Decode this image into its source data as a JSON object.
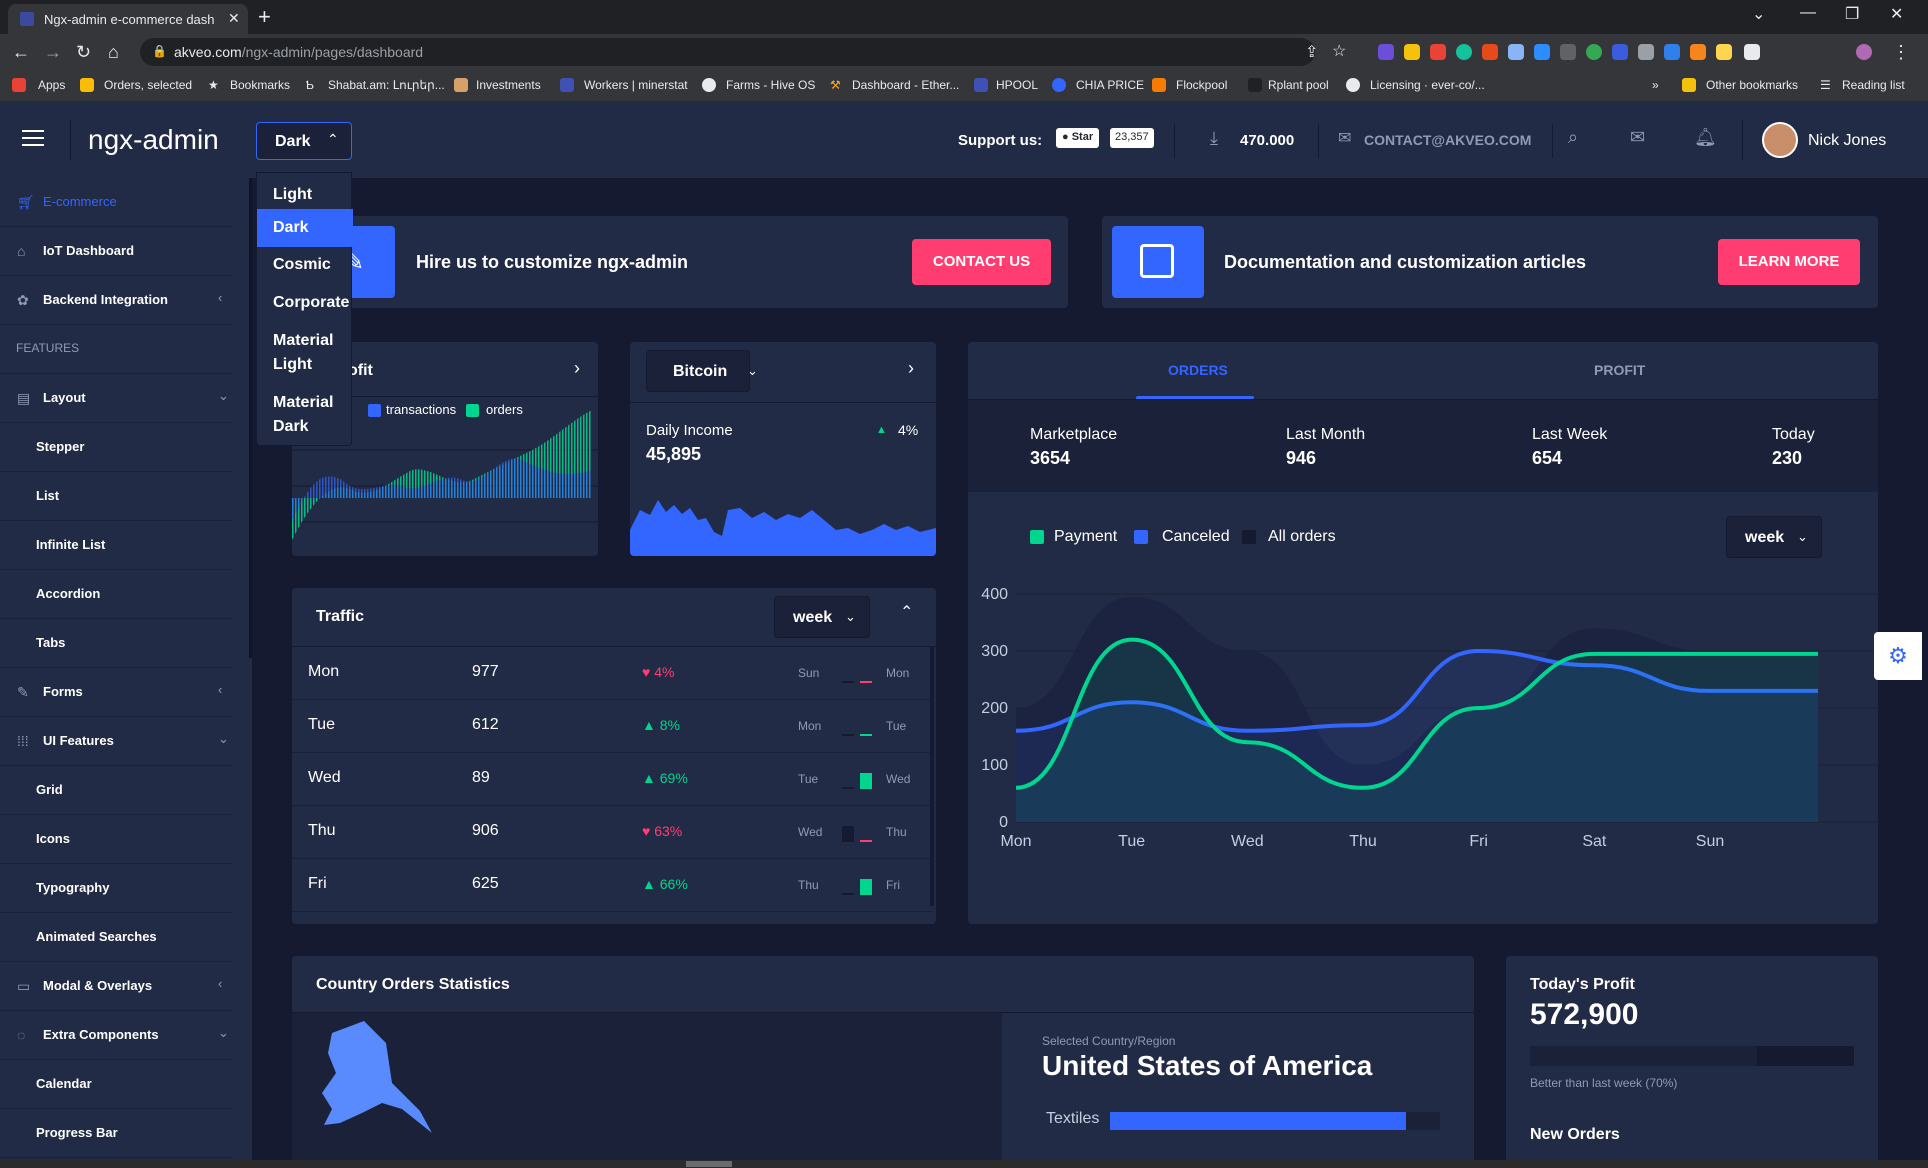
{
  "browser": {
    "tab_title": "Ngx-admin e-commerce dashbo",
    "url_host": "akveo.com",
    "url_path": "/ngx-admin/pages/dashboard",
    "bookmarks": [
      "Apps",
      "Orders, selected",
      "Bookmarks",
      "Shabat.am: Լուրեր...",
      "Investments",
      "Workers | minerstat",
      "Farms - Hive OS",
      "Dashboard - Ether...",
      "HPOOL",
      "CHIA PRICE",
      "Flockpool",
      "Rplant pool",
      "Licensing · ever-co/...",
      "Other bookmarks",
      "Reading list"
    ]
  },
  "header": {
    "brand": "ngx-admin",
    "theme_selected": "Dark",
    "support_label": "Support us:",
    "github_star": "Star",
    "github_count": "23,357",
    "downloads": "470.000",
    "contact": "CONTACT@AKVEO.COM",
    "user_name": "Nick Jones"
  },
  "theme_options": [
    "Light",
    "Dark",
    "Cosmic",
    "Corporate",
    "Material Light",
    "Material Dark"
  ],
  "sidebar": {
    "items": [
      {
        "label": "E-commerce",
        "icon": "cart-icon",
        "active": true
      },
      {
        "label": "IoT Dashboard",
        "icon": "home-icon"
      },
      {
        "label": "Backend Integration",
        "icon": "settings-icon",
        "chevron": "left"
      }
    ],
    "section": "FEATURES",
    "features": [
      {
        "label": "Layout",
        "icon": "layout-icon",
        "chevron": "down"
      },
      {
        "label": "Stepper",
        "sub": true
      },
      {
        "label": "List",
        "sub": true
      },
      {
        "label": "Infinite List",
        "sub": true
      },
      {
        "label": "Accordion",
        "sub": true
      },
      {
        "label": "Tabs",
        "sub": true
      },
      {
        "label": "Forms",
        "icon": "edit-icon",
        "chevron": "left"
      },
      {
        "label": "UI Features",
        "icon": "grid-icon",
        "chevron": "down"
      },
      {
        "label": "Grid",
        "sub": true
      },
      {
        "label": "Icons",
        "sub": true
      },
      {
        "label": "Typography",
        "sub": true
      },
      {
        "label": "Animated Searches",
        "sub": true
      },
      {
        "label": "Modal & Overlays",
        "icon": "browser-icon",
        "chevron": "left"
      },
      {
        "label": "Extra Components",
        "icon": "message-icon",
        "chevron": "down"
      },
      {
        "label": "Calendar",
        "sub": true
      },
      {
        "label": "Progress Bar",
        "sub": true
      }
    ]
  },
  "promo": {
    "left_text": "Hire us to customize ngx-admin",
    "left_button": "CONTACT US",
    "right_text": "Documentation and customization articles",
    "right_button": "LEARN MORE"
  },
  "profit_card": {
    "title": "ofit",
    "legend": [
      "transactions",
      "orders"
    ]
  },
  "bitcoin_card": {
    "currency": "Bitcoin",
    "label": "Daily Income",
    "value": "45,895",
    "delta": "4%"
  },
  "traffic": {
    "title": "Traffic",
    "period": "week",
    "rows": [
      {
        "day": "Mon",
        "value": "977",
        "delta": "4%",
        "dir": "down",
        "prev": "Sun",
        "cur": "Mon"
      },
      {
        "day": "Tue",
        "value": "612",
        "delta": "8%",
        "dir": "up",
        "prev": "Mon",
        "cur": "Tue"
      },
      {
        "day": "Wed",
        "value": "89",
        "delta": "69%",
        "dir": "up",
        "prev": "Tue",
        "cur": "Wed"
      },
      {
        "day": "Thu",
        "value": "906",
        "delta": "63%",
        "dir": "down",
        "prev": "Wed",
        "cur": "Thu"
      },
      {
        "day": "Fri",
        "value": "625",
        "delta": "66%",
        "dir": "up",
        "prev": "Thu",
        "cur": "Fri"
      }
    ]
  },
  "orders": {
    "tabs": [
      "ORDERS",
      "PROFIT"
    ],
    "stats": [
      {
        "label": "Marketplace",
        "value": "3654"
      },
      {
        "label": "Last Month",
        "value": "946"
      },
      {
        "label": "Last Week",
        "value": "654"
      },
      {
        "label": "Today",
        "value": "230"
      }
    ],
    "legend": [
      "Payment",
      "Canceled",
      "All orders"
    ],
    "period": "week"
  },
  "chart_data": {
    "type": "area",
    "categories": [
      "Mon",
      "Tue",
      "Wed",
      "Thu",
      "Fri",
      "Sat",
      "Sun"
    ],
    "ylim": [
      0,
      400
    ],
    "yticks": [
      "0",
      "100",
      "200",
      "300",
      "400"
    ],
    "series": [
      {
        "name": "All orders",
        "color": "#1b2340",
        "values": [
          200,
          395,
          300,
          100,
          200,
          340,
          300
        ]
      },
      {
        "name": "Canceled",
        "color": "#3366ff",
        "values": [
          160,
          210,
          160,
          170,
          300,
          275,
          230
        ]
      },
      {
        "name": "Payment",
        "color": "#00d68f",
        "values": [
          60,
          320,
          140,
          60,
          200,
          295,
          295
        ]
      }
    ]
  },
  "country": {
    "title": "Country Orders Statistics",
    "selected_label": "Selected Country/Region",
    "selected": "United States of America",
    "bar_label": "Textiles"
  },
  "today_profit": {
    "title": "Today's Profit",
    "value": "572,900",
    "progress": 0.7,
    "note": "Better than last week (70%)",
    "next": "New Orders"
  }
}
